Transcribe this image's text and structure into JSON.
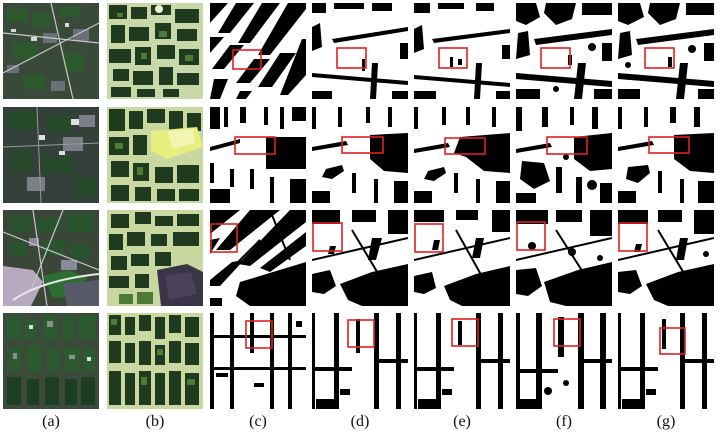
{
  "figure": {
    "columns": [
      {
        "label": "(a)",
        "kind": "satellite",
        "tone": "dark"
      },
      {
        "label": "(b)",
        "kind": "satellite",
        "tone": "bright"
      },
      {
        "label": "(c)",
        "kind": "ground-truth"
      },
      {
        "label": "(d)",
        "kind": "prediction"
      },
      {
        "label": "(e)",
        "kind": "prediction"
      },
      {
        "label": "(f)",
        "kind": "prediction"
      },
      {
        "label": "(g)",
        "kind": "prediction"
      }
    ],
    "rows": 4,
    "highlight_color": "#e02020"
  }
}
